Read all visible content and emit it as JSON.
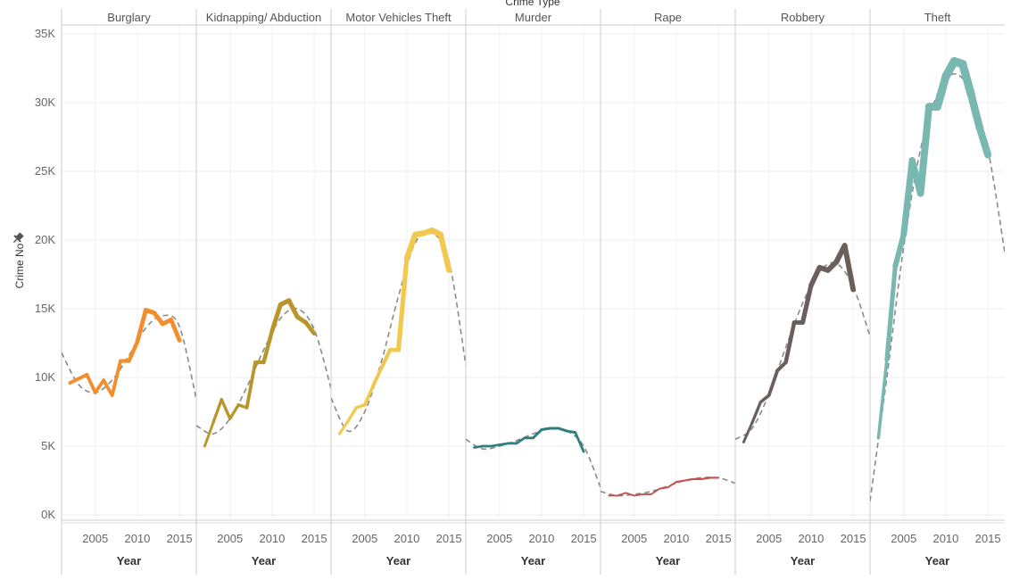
{
  "chart_data": {
    "type": "line",
    "top_title": "Crime Type",
    "ylabel": "Crime No",
    "xlabel": "Year",
    "ylim": [
      0,
      35000
    ],
    "xlim": [
      2001,
      2017
    ],
    "y_ticks": [
      0,
      5000,
      10000,
      15000,
      20000,
      25000,
      30000,
      35000
    ],
    "y_tick_labels": [
      "0K",
      "5K",
      "10K",
      "15K",
      "20K",
      "25K",
      "30K",
      "35K"
    ],
    "x_ticks": [
      2005,
      2010,
      2015
    ],
    "x_tick_labels": [
      "2005",
      "2010",
      "2015"
    ],
    "grid": true,
    "trend_line": "dashed polynomial trend per panel",
    "series": [
      {
        "name": "Burglary",
        "color": "#f28e2b",
        "x": [
          2002,
          2003,
          2004,
          2005,
          2006,
          2007,
          2008,
          2009,
          2010,
          2011,
          2012,
          2013,
          2014,
          2015
        ],
        "values": [
          9600,
          9900,
          10200,
          8900,
          9800,
          8700,
          11200,
          11200,
          12600,
          14900,
          14700,
          13900,
          14200,
          12700
        ],
        "trend_x": [
          2001,
          2003,
          2005,
          2007,
          2009,
          2011,
          2013,
          2015,
          2017
        ],
        "trend": [
          11800,
          9500,
          8900,
          9800,
          11600,
          13600,
          14500,
          13700,
          8400
        ]
      },
      {
        "name": "Kidnapping/ Abduction",
        "color": "#b9962c",
        "x": [
          2002,
          2003,
          2004,
          2005,
          2006,
          2007,
          2008,
          2009,
          2010,
          2011,
          2012,
          2013,
          2014,
          2015
        ],
        "values": [
          5000,
          6700,
          8400,
          7000,
          8000,
          7800,
          11100,
          11100,
          13400,
          15300,
          15600,
          14400,
          14000,
          13200
        ],
        "trend_x": [
          2001,
          2003,
          2005,
          2007,
          2009,
          2011,
          2013,
          2015,
          2017
        ],
        "trend": [
          6500,
          5900,
          7000,
          9300,
          12000,
          14300,
          15000,
          13500,
          9200
        ]
      },
      {
        "name": "Motor Vehicles Theft",
        "color": "#f1c94e",
        "x": [
          2002,
          2003,
          2004,
          2005,
          2006,
          2007,
          2008,
          2009,
          2010,
          2011,
          2012,
          2013,
          2014,
          2015
        ],
        "values": [
          5900,
          6800,
          7800,
          8000,
          9400,
          10700,
          12000,
          12000,
          18700,
          20400,
          20500,
          20700,
          20400,
          17800
        ],
        "trend_x": [
          2001,
          2003,
          2005,
          2007,
          2009,
          2011,
          2013,
          2015,
          2017
        ],
        "trend": [
          8500,
          6100,
          7500,
          11200,
          15900,
          19800,
          20500,
          18500,
          10900
        ]
      },
      {
        "name": "Murder",
        "color": "#2d7f7f",
        "x": [
          2002,
          2003,
          2004,
          2005,
          2006,
          2007,
          2008,
          2009,
          2010,
          2011,
          2012,
          2013,
          2014,
          2015
        ],
        "values": [
          4900,
          5000,
          5000,
          5100,
          5200,
          5200,
          5600,
          5600,
          6200,
          6300,
          6300,
          6100,
          6000,
          4600
        ],
        "trend_x": [
          2001,
          2003,
          2005,
          2007,
          2009,
          2011,
          2013,
          2015,
          2017
        ],
        "trend": [
          5500,
          4800,
          5000,
          5400,
          5900,
          6300,
          6100,
          5000,
          2000
        ]
      },
      {
        "name": "Rape",
        "color": "#c8504a",
        "x": [
          2002,
          2003,
          2004,
          2005,
          2006,
          2007,
          2008,
          2009,
          2010,
          2011,
          2012,
          2013,
          2014,
          2015
        ],
        "values": [
          1400,
          1400,
          1600,
          1400,
          1500,
          1500,
          1900,
          2000,
          2400,
          2500,
          2600,
          2600,
          2700,
          2700
        ],
        "trend_x": [
          2001,
          2003,
          2005,
          2007,
          2009,
          2011,
          2013,
          2015,
          2017
        ],
        "trend": [
          1700,
          1400,
          1500,
          1700,
          2100,
          2500,
          2700,
          2700,
          2300
        ]
      },
      {
        "name": "Robbery",
        "color": "#6a5f5b",
        "x": [
          2002,
          2003,
          2004,
          2005,
          2006,
          2007,
          2008,
          2009,
          2010,
          2011,
          2012,
          2013,
          2014,
          2015
        ],
        "values": [
          5300,
          6700,
          8200,
          8700,
          10500,
          11100,
          14000,
          14000,
          16700,
          18000,
          17800,
          18400,
          19600,
          16400
        ],
        "trend_x": [
          2001,
          2003,
          2005,
          2007,
          2009,
          2011,
          2013,
          2015,
          2017
        ],
        "trend": [
          5500,
          6300,
          8800,
          12200,
          15400,
          17700,
          18300,
          16600,
          13000
        ]
      },
      {
        "name": "Theft",
        "color": "#79b8b0",
        "x": [
          2002,
          2003,
          2004,
          2005,
          2006,
          2007,
          2008,
          2009,
          2010,
          2011,
          2012,
          2013,
          2014,
          2015
        ],
        "values": [
          5600,
          11300,
          18100,
          20400,
          25800,
          23400,
          29700,
          29700,
          31900,
          33000,
          32800,
          30600,
          28200,
          26200
        ],
        "trend_x": [
          2001,
          2003,
          2005,
          2007,
          2009,
          2011,
          2013,
          2015,
          2017
        ],
        "trend": [
          1000,
          10000,
          19500,
          26600,
          30600,
          32100,
          30700,
          26600,
          19100
        ]
      }
    ]
  }
}
